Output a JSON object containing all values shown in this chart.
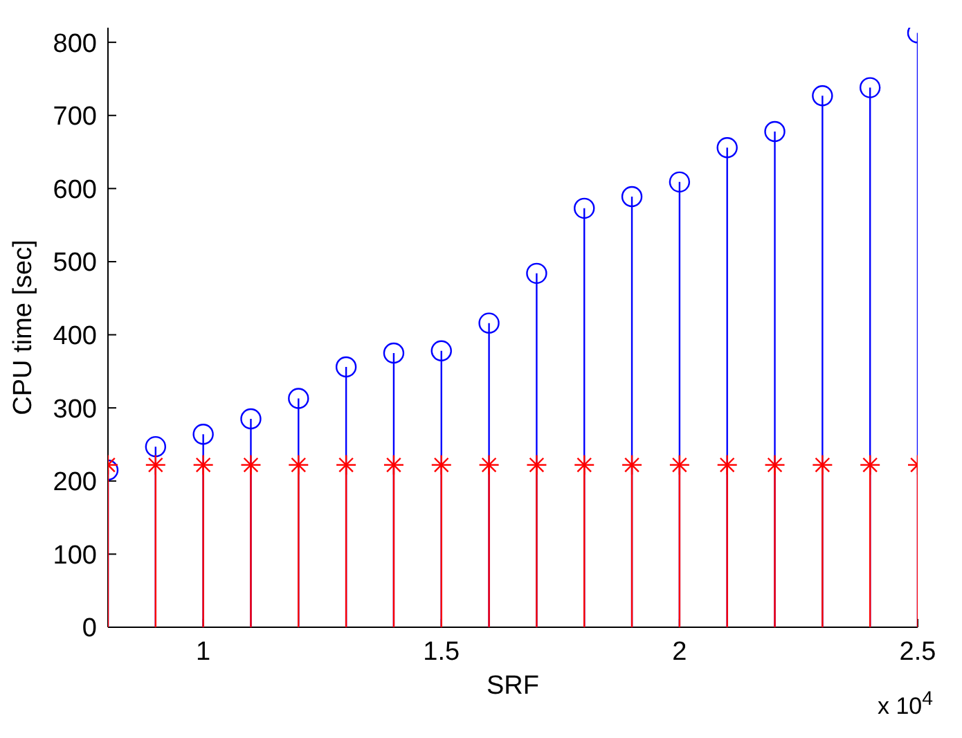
{
  "chart_data": {
    "type": "lollipop",
    "xlabel": "SRF",
    "ylabel": "CPU time [sec]",
    "annotations": [
      "x 10$^{4}$"
    ],
    "x": [
      0.8,
      0.9,
      1,
      1.1,
      1.2,
      1.3,
      1.4,
      1.5,
      1.6,
      1.7,
      1.8,
      1.9,
      2,
      2.1,
      2.2,
      2.3,
      2.4,
      2.5
    ],
    "series": [
      {
        "color": "#0000ff",
        "marker": "circle",
        "values": [
          215,
          247,
          264,
          285,
          313,
          356,
          375,
          378,
          416,
          484,
          573,
          589,
          609,
          656,
          678,
          727,
          738,
          813
        ]
      },
      {
        "color": "#ff0000",
        "marker": "cross",
        "values": [
          222,
          222,
          222,
          222,
          222,
          222,
          222,
          222,
          222,
          222,
          222,
          222,
          222,
          222,
          222,
          222,
          222,
          222
        ]
      }
    ],
    "xlim": [
      0.8,
      2.5
    ],
    "xticks": [
      1,
      1.5,
      2,
      2.5
    ],
    "ylim": [
      0,
      820
    ],
    "yticks": [
      0,
      100,
      200,
      300,
      400,
      500,
      600,
      700,
      800
    ],
    "grid": false,
    "legend": false
  }
}
